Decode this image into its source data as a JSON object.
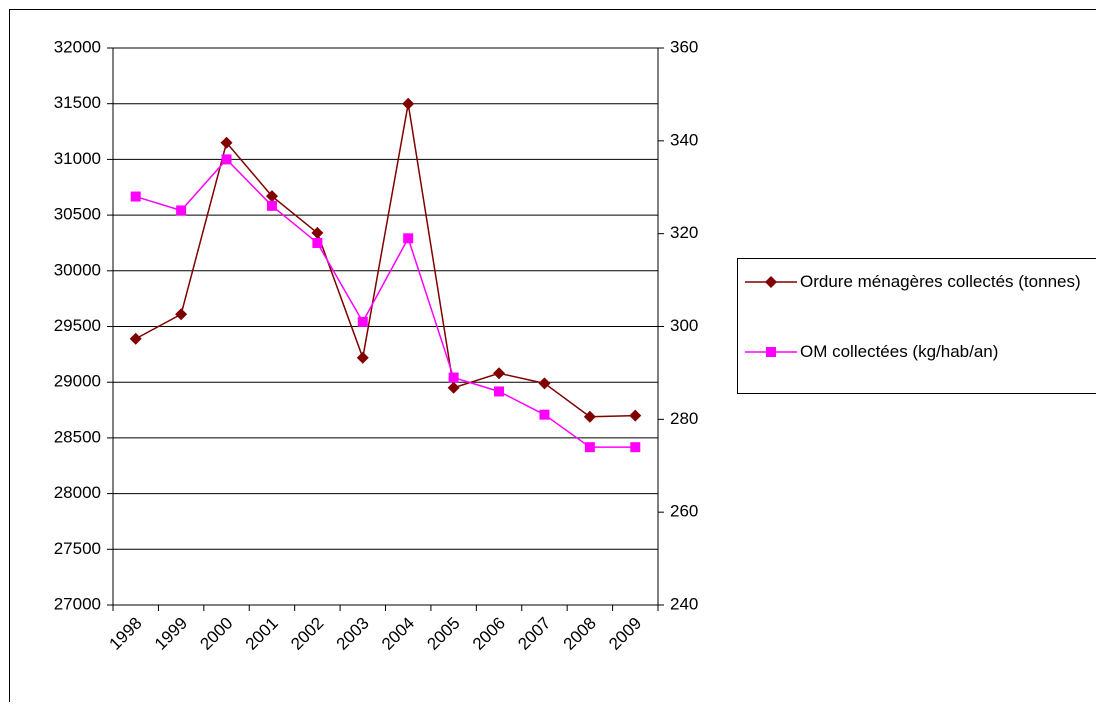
{
  "chart_data": {
    "type": "line",
    "categories": [
      "1998",
      "1999",
      "2000",
      "2001",
      "2002",
      "2003",
      "2004",
      "2005",
      "2006",
      "2007",
      "2008",
      "2009"
    ],
    "series": [
      {
        "name": "Ordure ménagères collectés (tonnes)",
        "color": "#800000",
        "marker": "diamond",
        "values": [
          29390,
          29610,
          31150,
          30670,
          30340,
          29220,
          31500,
          28950,
          29080,
          28990,
          28690,
          28700
        ]
      },
      {
        "name": "OM collectées (kg/hab/an)",
        "color": "#ff00ff",
        "marker": "square",
        "axis": "y2",
        "values": [
          328,
          325,
          336,
          326,
          318,
          301,
          319,
          289,
          286,
          281,
          274,
          274
        ]
      }
    ],
    "ylim": [
      27000,
      32000
    ],
    "yticks": [
      27000,
      27500,
      28000,
      28500,
      29000,
      29500,
      30000,
      30500,
      31000,
      31500,
      32000
    ],
    "y2lim": [
      240,
      360
    ],
    "y2ticks": [
      240,
      260,
      280,
      300,
      320,
      340,
      360
    ],
    "grid": true,
    "legend": "right"
  }
}
